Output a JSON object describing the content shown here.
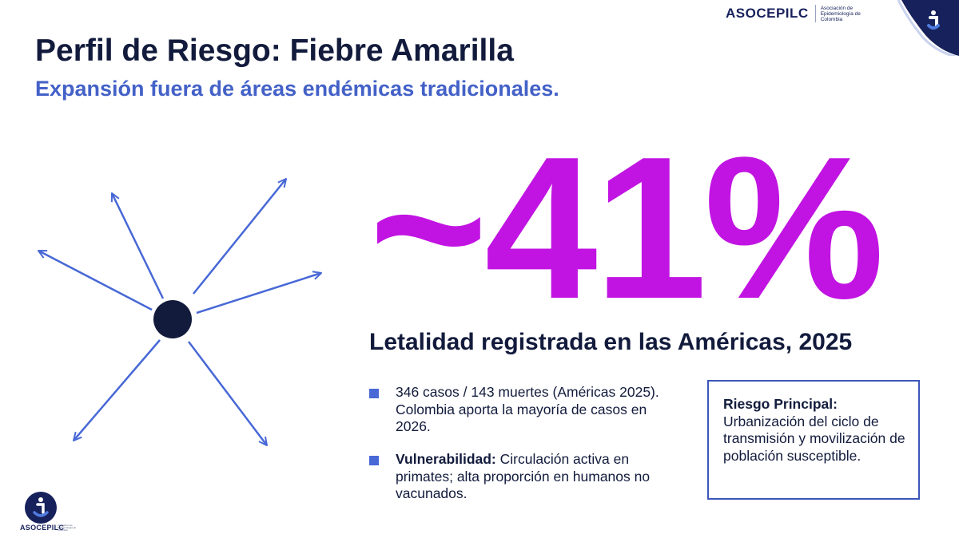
{
  "brand": {
    "name": "ASOCEPILC",
    "subtitle": "Asociación de Epidemiología de Colombia",
    "colors": {
      "navy": "#17215b",
      "blue": "#4361c7",
      "accent": "#c114e2"
    },
    "corner_icon": "asocepilc-logo-icon"
  },
  "slide": {
    "title": "Perfil de Riesgo: Fiebre Amarilla",
    "subtitle": "Expansión fuera de áreas endémicas tradicionales."
  },
  "metric": {
    "value": "~41%",
    "label": "Letalidad registrada en las Américas, 2025"
  },
  "bullets": [
    {
      "bold": "",
      "text": "346 casos / 143 muertes (Américas 2025). Colombia aporta la mayoría de casos en 2026."
    },
    {
      "bold": "Vulnerabilidad:",
      "text": " Circulación activa en primates; alta proporción en humanos no vacunados."
    }
  ],
  "risk_box": {
    "title": "Riesgo Principal:",
    "body": "Urbanización del ciclo de transmisión y movilización de población susceptible."
  },
  "footer_logo": {
    "name": "ASOCEPILC",
    "small_text": "Asociación de Epidemiología de Colombia"
  }
}
